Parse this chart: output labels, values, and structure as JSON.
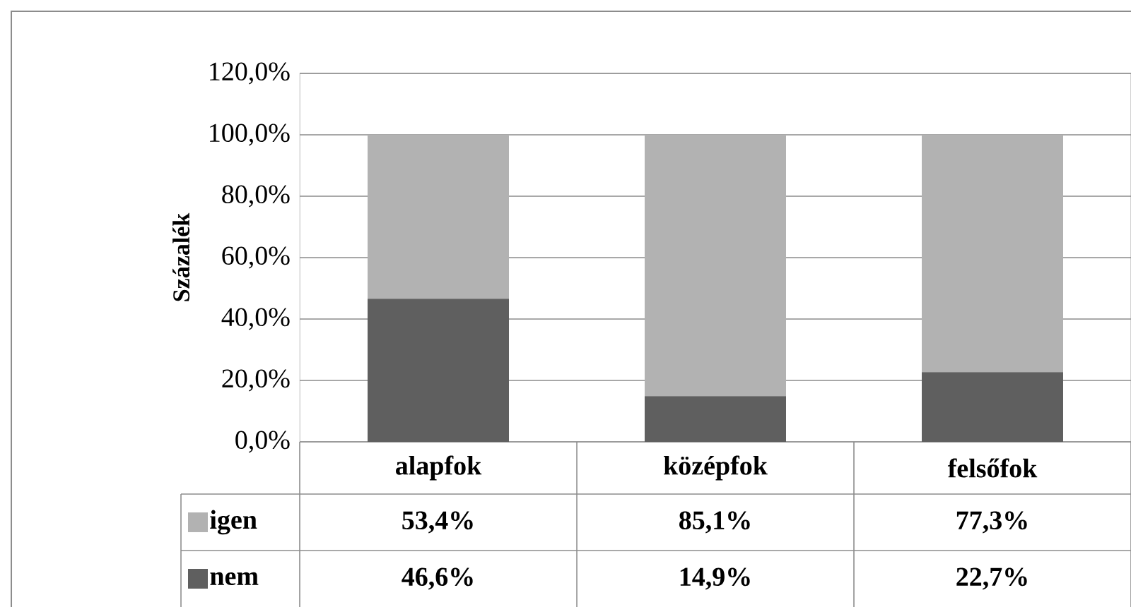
{
  "chart_data": {
    "type": "bar",
    "stacked": true,
    "ylabel": "Százalék",
    "categories": [
      "alapfok",
      "középfok",
      "felsőfok"
    ],
    "series": [
      {
        "name": "nem",
        "color": "#5f5f5f",
        "values": [
          46.6,
          14.9,
          22.7
        ],
        "value_labels": [
          "46,6%",
          "14,9%",
          "22,7%"
        ]
      },
      {
        "name": "igen",
        "color": "#b2b2b2",
        "values": [
          53.4,
          85.1,
          77.3
        ],
        "value_labels": [
          "53,4%",
          "85,1%",
          "77,3%"
        ]
      }
    ],
    "ylim": [
      0,
      120
    ],
    "yticks": [
      {
        "value": 0,
        "label": "0,0%"
      },
      {
        "value": 20,
        "label": "20,0%"
      },
      {
        "value": 40,
        "label": "40,0%"
      },
      {
        "value": 60,
        "label": "60,0%"
      },
      {
        "value": 80,
        "label": "80,0%"
      },
      {
        "value": 100,
        "label": "100,0%"
      },
      {
        "value": 120,
        "label": "120,0%"
      }
    ],
    "grid": "y",
    "legend": "bottom left"
  }
}
